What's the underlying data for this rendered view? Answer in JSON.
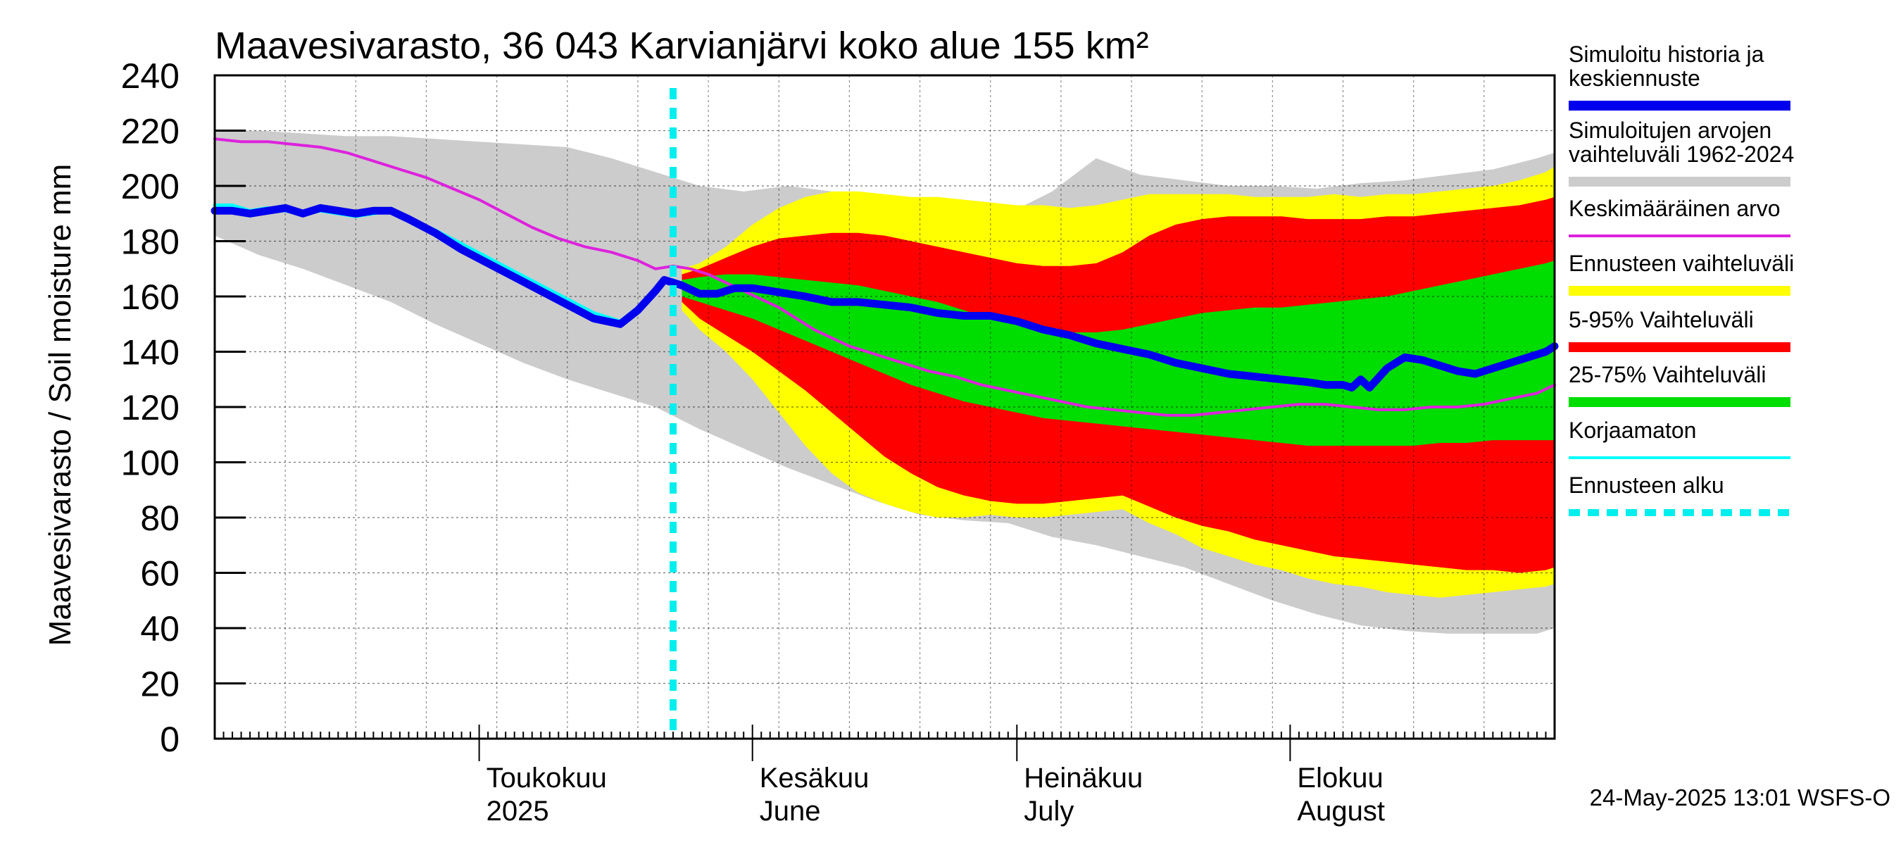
{
  "chart_data": {
    "type": "area",
    "title": "Maavesivarasto, 36 043 Karvianjärvi koko alue 155 km²",
    "ylabel": "Maavesivarasto / Soil moisture   mm",
    "xlabel": "",
    "ylim": [
      0,
      240
    ],
    "yticks": [
      0,
      20,
      40,
      60,
      80,
      100,
      120,
      140,
      160,
      180,
      200,
      220,
      240
    ],
    "x_start": "2025-04-01",
    "x_end": "2025-08-31",
    "forecast_start_day": 52,
    "month_labels": [
      {
        "day": 30,
        "fi": "Toukokuu",
        "en": "2025"
      },
      {
        "day": 61,
        "fi": "Kesäkuu",
        "en": "June"
      },
      {
        "day": 91,
        "fi": "Heinäkuu",
        "en": "July"
      },
      {
        "day": 122,
        "fi": "Elokuu",
        "en": "August"
      }
    ],
    "history_band": {
      "x": [
        0,
        5,
        10,
        15,
        20,
        25,
        30,
        35,
        40,
        45,
        50,
        55,
        60,
        65,
        70,
        75,
        80,
        85,
        90,
        95,
        100,
        105,
        110,
        115,
        120,
        125,
        130,
        135,
        140,
        145,
        150,
        152
      ],
      "upper": [
        220,
        220,
        219,
        218,
        218,
        217,
        216,
        215,
        214,
        210,
        205,
        200,
        198,
        200,
        198,
        196,
        193,
        192,
        190,
        198,
        210,
        204,
        202,
        200,
        200,
        199,
        201,
        202,
        204,
        206,
        210,
        212
      ],
      "lower": [
        182,
        175,
        170,
        164,
        158,
        150,
        143,
        136,
        130,
        125,
        120,
        112,
        105,
        98,
        92,
        86,
        81,
        79,
        78,
        73,
        70,
        66,
        62,
        56,
        50,
        45,
        41,
        39,
        38,
        38,
        38,
        40
      ]
    },
    "forecast_band": {
      "x": [
        53,
        55,
        58,
        61,
        64,
        67,
        70,
        73,
        76,
        79,
        82,
        85,
        88,
        91,
        94,
        97,
        100,
        103,
        106,
        109,
        112,
        115,
        118,
        121,
        124,
        127,
        130,
        133,
        136,
        139,
        142,
        145,
        148,
        151,
        152
      ],
      "max": [
        170,
        172,
        178,
        186,
        192,
        196,
        198,
        198,
        197,
        196,
        196,
        195,
        194,
        193,
        193,
        192,
        193,
        195,
        197,
        197,
        197,
        197,
        196,
        196,
        196,
        197,
        196,
        197,
        197,
        198,
        199,
        200,
        202,
        205,
        207
      ],
      "p95": [
        168,
        170,
        174,
        178,
        181,
        182,
        183,
        183,
        182,
        180,
        178,
        176,
        174,
        172,
        171,
        171,
        172,
        176,
        182,
        186,
        188,
        189,
        189,
        189,
        188,
        188,
        188,
        189,
        189,
        190,
        191,
        192,
        193,
        195,
        196
      ],
      "p75": [
        166,
        167,
        168,
        168,
        167,
        166,
        165,
        164,
        162,
        160,
        158,
        155,
        152,
        150,
        148,
        147,
        147,
        148,
        150,
        152,
        154,
        155,
        156,
        156,
        157,
        158,
        159,
        160,
        162,
        164,
        166,
        168,
        170,
        172,
        173
      ],
      "p25": [
        160,
        158,
        155,
        152,
        148,
        144,
        140,
        136,
        132,
        128,
        125,
        122,
        120,
        118,
        116,
        115,
        114,
        113,
        112,
        111,
        110,
        109,
        108,
        107,
        106,
        106,
        106,
        106,
        106,
        107,
        107,
        108,
        108,
        108,
        108
      ],
      "p5": [
        158,
        152,
        146,
        140,
        133,
        126,
        118,
        110,
        102,
        96,
        91,
        88,
        86,
        85,
        85,
        86,
        87,
        88,
        84,
        80,
        77,
        75,
        72,
        70,
        68,
        66,
        65,
        64,
        63,
        62,
        61,
        61,
        60,
        61,
        62
      ],
      "min": [
        155,
        148,
        140,
        130,
        118,
        106,
        96,
        89,
        85,
        82,
        80,
        80,
        81,
        80,
        80,
        81,
        82,
        83,
        78,
        74,
        69,
        66,
        63,
        61,
        58,
        56,
        55,
        53,
        52,
        51,
        52,
        53,
        54,
        55,
        56
      ]
    },
    "series": [
      {
        "name": "Simuloitu historia ja keskiennuste",
        "x": [
          0,
          2,
          4,
          6,
          8,
          10,
          12,
          14,
          16,
          18,
          20,
          22,
          25,
          28,
          31,
          34,
          37,
          40,
          43,
          46,
          48,
          50,
          51,
          52,
          53,
          55,
          57,
          59,
          61,
          63,
          65,
          67,
          70,
          73,
          76,
          79,
          82,
          85,
          88,
          91,
          94,
          97,
          100,
          103,
          106,
          109,
          112,
          115,
          118,
          121,
          124,
          126,
          128,
          129,
          130,
          131,
          133,
          135,
          137,
          139,
          141,
          143,
          145,
          147,
          149,
          151,
          152
        ],
        "values": [
          191,
          191,
          190,
          191,
          192,
          190,
          192,
          191,
          190,
          191,
          191,
          188,
          183,
          177,
          172,
          167,
          162,
          157,
          152,
          150,
          155,
          162,
          166,
          165,
          164,
          161,
          161,
          163,
          163,
          162,
          161,
          160,
          158,
          158,
          157,
          156,
          154,
          153,
          153,
          151,
          148,
          146,
          143,
          141,
          139,
          136,
          134,
          132,
          131,
          130,
          129,
          128,
          128,
          127,
          130,
          127,
          134,
          138,
          137,
          135,
          133,
          132,
          134,
          136,
          138,
          140,
          142
        ]
      },
      {
        "name": "Keskimääräinen arvo",
        "x": [
          0,
          3,
          6,
          9,
          12,
          15,
          18,
          21,
          24,
          27,
          30,
          33,
          36,
          39,
          42,
          45,
          48,
          50,
          52,
          54,
          56,
          58,
          60,
          62,
          64,
          66,
          68,
          70,
          72,
          75,
          78,
          81,
          84,
          87,
          90,
          93,
          96,
          99,
          102,
          105,
          108,
          111,
          114,
          117,
          120,
          123,
          126,
          129,
          132,
          135,
          138,
          141,
          144,
          147,
          150,
          152
        ],
        "values": [
          217,
          216,
          216,
          215,
          214,
          212,
          209,
          206,
          203,
          199,
          195,
          190,
          185,
          181,
          178,
          176,
          173,
          170,
          171,
          170,
          168,
          165,
          162,
          159,
          156,
          152,
          148,
          145,
          142,
          139,
          136,
          133,
          131,
          128,
          126,
          124,
          122,
          120,
          119,
          118,
          117,
          117,
          118,
          119,
          120,
          121,
          121,
          120,
          119,
          119,
          120,
          120,
          121,
          123,
          125,
          128
        ]
      },
      {
        "name": "Korjaamaton",
        "x": [
          0,
          2,
          4,
          6,
          8,
          10,
          12,
          14,
          16,
          18,
          20,
          22,
          25,
          28,
          31,
          34,
          37,
          40,
          43,
          46,
          48,
          50,
          51,
          52
        ],
        "values": [
          193,
          193,
          191,
          192,
          191,
          190,
          191,
          190,
          189,
          190,
          191,
          188,
          184,
          179,
          174,
          169,
          164,
          159,
          154,
          151,
          156,
          163,
          166,
          166
        ]
      }
    ],
    "legend": [
      {
        "label_lines": [
          "Simuloitu historia ja",
          "keskiennuste"
        ],
        "color": "#0000ee",
        "style": "thick"
      },
      {
        "label_lines": [
          "Simuloitujen arvojen",
          "vaihteluväli 1962-2024"
        ],
        "color": "#cccccc",
        "style": "thick"
      },
      {
        "label_lines": [
          "Keskimääräinen arvo"
        ],
        "color": "#dd22dd",
        "style": "thin"
      },
      {
        "label_lines": [
          "Ennusteen vaihteluväli"
        ],
        "color": "#ffff00",
        "style": "thick"
      },
      {
        "label_lines": [
          "5-95% Vaihteluväli"
        ],
        "color": "#ff0000",
        "style": "thick"
      },
      {
        "label_lines": [
          "25-75% Vaihteluväli"
        ],
        "color": "#00dd00",
        "style": "thick"
      },
      {
        "label_lines": [
          "Korjaamaton"
        ],
        "color": "#00ffff",
        "style": "thin"
      },
      {
        "label_lines": [
          "Ennusteen alku"
        ],
        "color": "#00eeee",
        "style": "dashed"
      }
    ],
    "colors": {
      "history_band": "#cccccc",
      "forecast_max": "#ffff00",
      "p5_95": "#ff0000",
      "p25_75": "#00dd00",
      "mean": "#dd22dd",
      "main": "#0000ee",
      "uncorrected": "#00ffff",
      "forecast_start": "#00eeee"
    }
  },
  "footer": "24-May-2025 13:01 WSFS-O"
}
